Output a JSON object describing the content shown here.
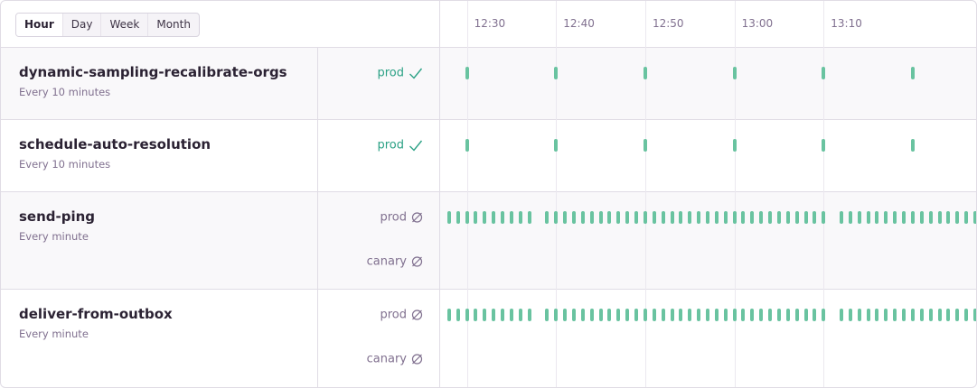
{
  "tabs": {
    "options": [
      "Hour",
      "Day",
      "Week",
      "Month"
    ],
    "selected": 0
  },
  "timeline": {
    "range": [
      747,
      807.3
    ],
    "ticks": [
      {
        "value": 750,
        "label": "12:30"
      },
      {
        "value": 760,
        "label": "12:40"
      },
      {
        "value": 770,
        "label": "12:50"
      },
      {
        "value": 780,
        "label": "13:00"
      },
      {
        "value": 790,
        "label": "13:10"
      }
    ]
  },
  "monitors": [
    {
      "name": "dynamic-sampling-recalibrate-orgs",
      "schedule": "Every 10 minutes",
      "environments": [
        {
          "name": "prod",
          "status": "ok",
          "checkins": [
            750,
            760,
            770,
            780,
            790,
            800
          ]
        }
      ]
    },
    {
      "name": "schedule-auto-resolution",
      "schedule": "Every 10 minutes",
      "environments": [
        {
          "name": "prod",
          "status": "ok",
          "checkins": [
            750,
            760,
            770,
            780,
            790,
            800
          ]
        }
      ]
    },
    {
      "name": "send-ping",
      "schedule": "Every minute",
      "environments": [
        {
          "name": "prod",
          "status": "muted",
          "checkins": [
            748,
            749,
            750,
            751,
            752,
            753,
            754,
            755,
            756,
            757,
            759,
            760,
            761,
            762,
            763,
            764,
            765,
            766,
            767,
            768,
            769,
            770,
            771,
            772,
            773,
            774,
            775,
            776,
            777,
            778,
            779,
            780,
            781,
            782,
            783,
            784,
            785,
            786,
            787,
            788,
            789,
            790,
            792,
            793,
            794,
            795,
            796,
            797,
            798,
            799,
            800,
            801,
            802,
            803,
            804,
            805,
            806,
            807
          ]
        },
        {
          "name": "canary",
          "status": "muted",
          "checkins": []
        }
      ]
    },
    {
      "name": "deliver-from-outbox",
      "schedule": "Every minute",
      "environments": [
        {
          "name": "prod",
          "status": "muted",
          "checkins": [
            748,
            749,
            750,
            751,
            752,
            753,
            754,
            755,
            756,
            757,
            759,
            760,
            761,
            762,
            763,
            764,
            765,
            766,
            767,
            768,
            769,
            770,
            771,
            772,
            773,
            774,
            775,
            776,
            777,
            778,
            779,
            780,
            781,
            782,
            783,
            784,
            785,
            786,
            787,
            788,
            789,
            790,
            792,
            793,
            794,
            795,
            796,
            797,
            798,
            799,
            800,
            801,
            802,
            803,
            804,
            805,
            806,
            807
          ]
        },
        {
          "name": "canary",
          "status": "muted",
          "checkins": []
        }
      ]
    }
  ]
}
